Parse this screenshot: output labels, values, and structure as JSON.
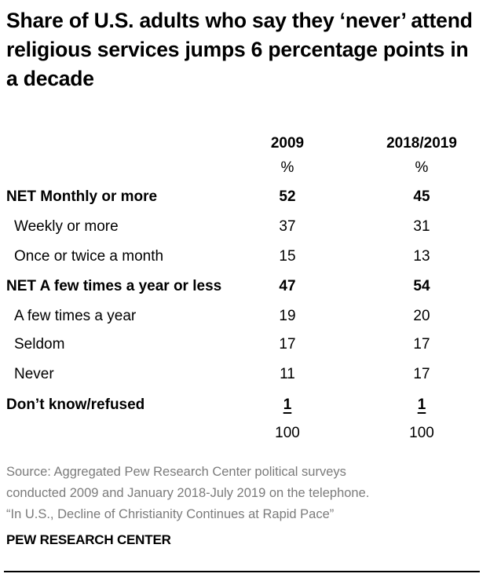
{
  "title": "Share of U.S. adults who say they ‘never’ attend religious services jumps 6 percentage points in a decade",
  "chart_data": {
    "type": "table",
    "columns": [
      "2009",
      "2018/2019"
    ],
    "units": [
      "%",
      "%"
    ],
    "rows": [
      {
        "label": "NET Monthly or more",
        "values": [
          "52",
          "45"
        ],
        "bold": true,
        "indent": false
      },
      {
        "label": "Weekly or more",
        "values": [
          "37",
          "31"
        ],
        "bold": false,
        "indent": true
      },
      {
        "label": "Once or twice a month",
        "values": [
          "15",
          "13"
        ],
        "bold": false,
        "indent": true
      },
      {
        "label": "NET A few times a year or less",
        "values": [
          "47",
          "54"
        ],
        "bold": true,
        "indent": false
      },
      {
        "label": "A few times a year",
        "values": [
          "19",
          "20"
        ],
        "bold": false,
        "indent": true
      },
      {
        "label": "Seldom",
        "values": [
          "17",
          "17"
        ],
        "bold": false,
        "indent": true
      },
      {
        "label": "Never",
        "values": [
          "11",
          "17"
        ],
        "bold": false,
        "indent": true
      },
      {
        "label": "Don’t know/refused",
        "values": [
          "1",
          "1"
        ],
        "bold": true,
        "indent": false,
        "underline": true
      }
    ],
    "totals": [
      "100",
      "100"
    ]
  },
  "source": [
    "Source: Aggregated Pew Research Center political surveys",
    "conducted 2009 and January 2018-July 2019 on the telephone.",
    "“In U.S., Decline of Christianity Continues at Rapid Pace”"
  ],
  "footer": "PEW RESEARCH CENTER",
  "colors": {
    "text": "#000000",
    "source": "#7b7b7b"
  }
}
